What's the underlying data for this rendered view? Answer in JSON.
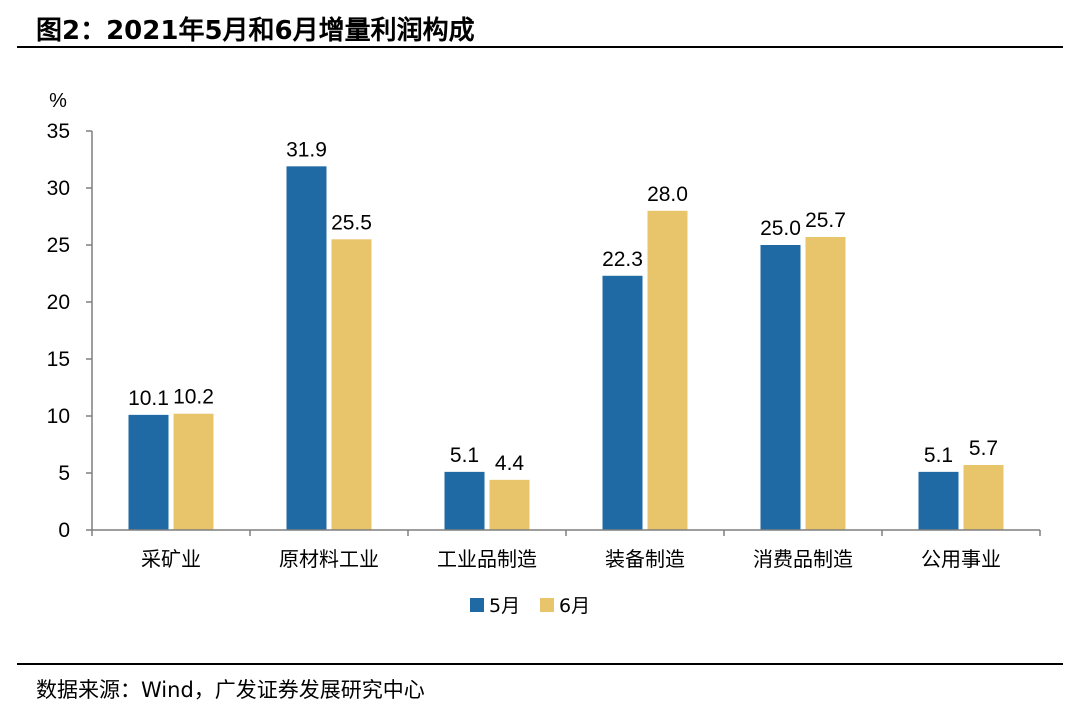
{
  "figure": {
    "title": "图2：2021年5月和6月增量利润构成",
    "source": "数据来源：Wind，广发证券发展研究中心"
  },
  "chart_data": {
    "type": "bar",
    "ylabel": "%",
    "ylim": [
      0,
      35
    ],
    "yticks": [
      0,
      5,
      10,
      15,
      20,
      25,
      30,
      35
    ],
    "grid": false,
    "legend_position": "bottom-center",
    "categories": [
      "采矿业",
      "原材料工业",
      "工业品制造",
      "装备制造",
      "消费品制造",
      "公用事业"
    ],
    "series": [
      {
        "name": "5月",
        "color": "#1f6aa5",
        "values": [
          10.1,
          31.9,
          5.1,
          22.3,
          25.0,
          5.1
        ]
      },
      {
        "name": "6月",
        "color": "#e8c56a",
        "values": [
          10.2,
          25.5,
          4.4,
          28.0,
          25.7,
          5.7
        ]
      }
    ],
    "value_labels": [
      [
        "10.1",
        "31.9",
        "5.1",
        "22.3",
        "25.0",
        "5.1"
      ],
      [
        "10.2",
        "25.5",
        "4.4",
        "28.0",
        "25.7",
        "5.7"
      ]
    ]
  }
}
